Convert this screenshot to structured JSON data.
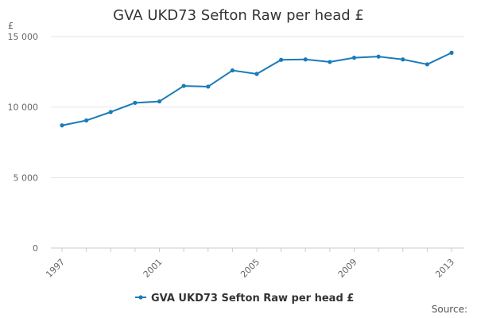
{
  "chart_data": {
    "type": "line",
    "title": "GVA UKD73 Sefton Raw per head £",
    "y_unit": "£",
    "source_label": "Source:",
    "x": [
      1997,
      1998,
      1999,
      2000,
      2001,
      2002,
      2003,
      2004,
      2005,
      2006,
      2007,
      2008,
      2009,
      2010,
      2011,
      2012,
      2013
    ],
    "x_tick_labels": [
      "1997",
      "2001",
      "2005",
      "2009",
      "2013"
    ],
    "y_tick_labels": [
      "0",
      "5 000",
      "10 000",
      "15 000"
    ],
    "y_ticks": [
      0,
      5000,
      10000,
      15000
    ],
    "ylim": [
      0,
      15000
    ],
    "grid": true,
    "legend_position": "bottom",
    "series": [
      {
        "name": "GVA UKD73 Sefton Raw per head £",
        "color": "#1a7bb9",
        "values": [
          8700,
          9050,
          9650,
          10300,
          10400,
          11500,
          11450,
          12600,
          12350,
          13350,
          13380,
          13200,
          13500,
          13580,
          13380,
          13030,
          13850
        ]
      }
    ]
  }
}
